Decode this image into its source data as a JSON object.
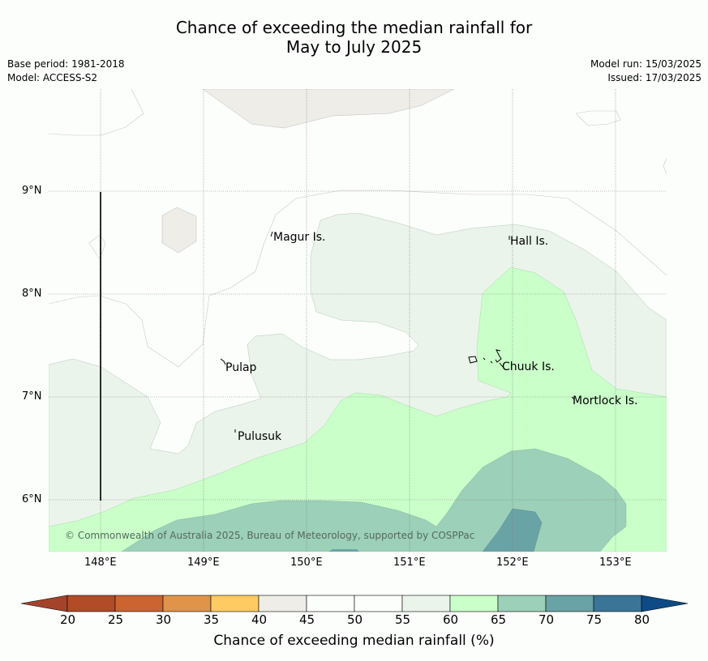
{
  "title_line1": "Chance of exceeding the median rainfall for",
  "title_line2": "May to July 2025",
  "base_period": "Base period: 1981-2018",
  "model": "Model: ACCESS-S2",
  "model_run": "Model run: 15/03/2025",
  "issued": "Issued: 17/03/2025",
  "lat_labels": [
    "9°N",
    "8°N",
    "7°N",
    "6°N"
  ],
  "lon_labels": [
    "148°E",
    "149°E",
    "150°E",
    "151°E",
    "152°E",
    "153°E"
  ],
  "places": [
    "Magur Is.",
    "Hall Is.",
    "Pulap",
    "Chuuk Is.",
    "Mortlock Is.",
    "Pulusuk"
  ],
  "copyright": "© Commonwealth of Australia 2025, Bureau of Meteorology, supported by COSPPac",
  "colorbar": {
    "ticks": [
      "20",
      "25",
      "30",
      "35",
      "40",
      "45",
      "50",
      "55",
      "60",
      "65",
      "70",
      "75",
      "80"
    ],
    "colors": [
      "#a5432a",
      "#b24b28",
      "#cc6431",
      "#e0944a",
      "#fdcb62",
      "#efede8",
      "#fcfefc",
      "#fcfefc",
      "#eaf4ea",
      "#caffca",
      "#9cd0b8",
      "#6aa3a6",
      "#3a7598",
      "#0d4a86"
    ],
    "title": "Chance of exceeding median rainfall (%)"
  }
}
